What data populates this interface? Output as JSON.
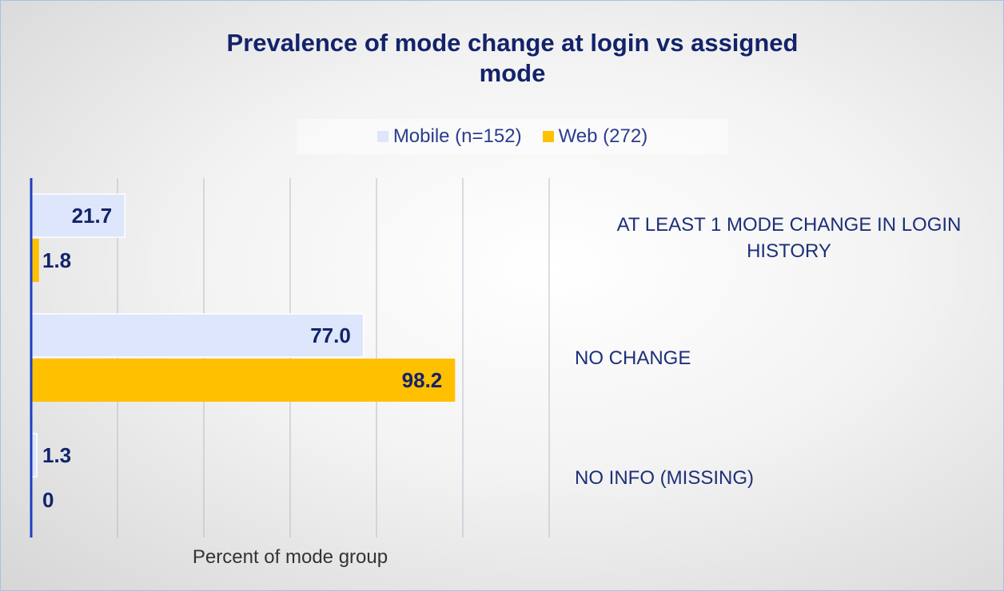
{
  "chart_data": {
    "type": "hbar",
    "title": "Prevalence of mode change at login vs assigned mode",
    "categories": [
      "AT LEAST 1 MODE CHANGE IN LOGIN HISTORY",
      "NO CHANGE",
      "NO INFO (MISSING)"
    ],
    "series": [
      {
        "name": "Mobile (n=152)",
        "color": "#dde6fa",
        "values": [
          21.7,
          77.0,
          1.3
        ],
        "value_labels": [
          "21.7",
          "77.0",
          "1.3"
        ]
      },
      {
        "name": "Web (272)",
        "color": "#ffc000",
        "values": [
          1.8,
          98.2,
          0
        ],
        "value_labels": [
          "1.8",
          "98.2",
          "0"
        ]
      }
    ],
    "xlabel": "Percent of mode group",
    "xlim": [
      0,
      120
    ],
    "xticks": [
      0,
      20,
      40,
      60,
      80,
      100,
      120
    ],
    "grid": true
  }
}
